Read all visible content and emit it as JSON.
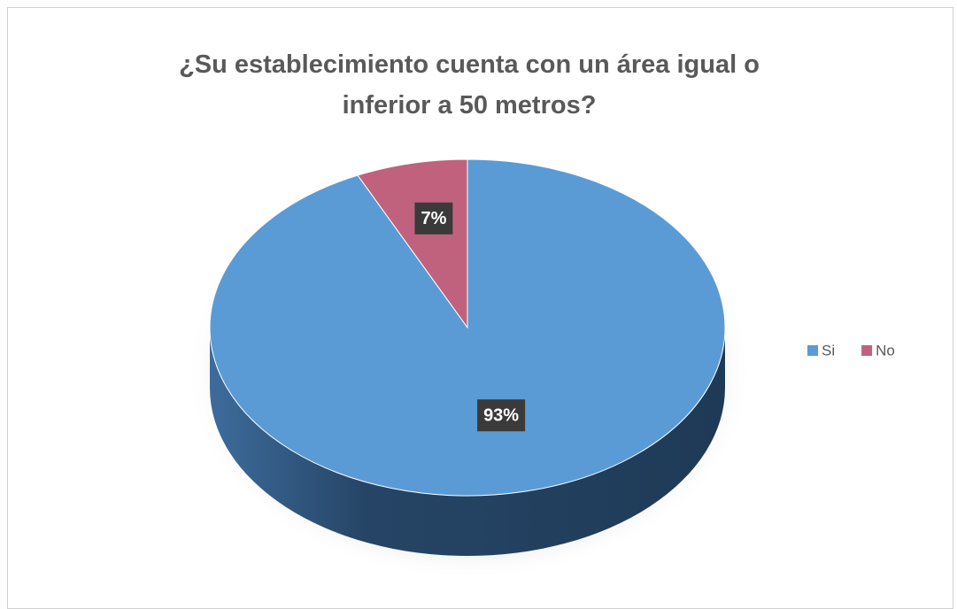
{
  "chart_data": {
    "type": "pie",
    "title": "¿Su establecimiento cuenta con un área igual o inferior a 50 metros?",
    "categories": [
      "Si",
      "No"
    ],
    "values": [
      93,
      7
    ],
    "value_labels": [
      "93%",
      "7%"
    ],
    "colors": [
      "#5b9bd5",
      "#c0627e"
    ],
    "legend": "right"
  }
}
